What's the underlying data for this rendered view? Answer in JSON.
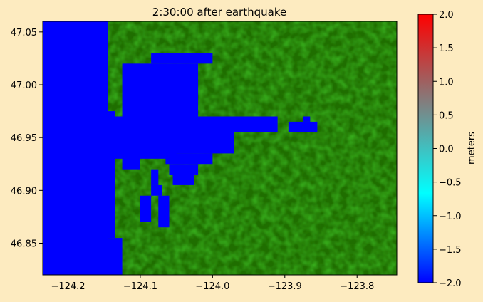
{
  "chart_data": {
    "type": "heatmap",
    "title": "2:30:00 after earthquake",
    "xlabel": "",
    "ylabel": "",
    "xlim": [
      -124.235,
      -123.745
    ],
    "ylim": [
      46.82,
      47.06
    ],
    "xticks": [
      -124.2,
      -124.1,
      -124.0,
      -123.9,
      -123.8
    ],
    "xtick_labels": [
      "−124.2",
      "−124.1",
      "−124.0",
      "−123.9",
      "−123.8"
    ],
    "yticks": [
      46.85,
      46.9,
      46.95,
      47.0,
      47.05
    ],
    "ytick_labels": [
      "46.85",
      "46.90",
      "46.95",
      "47.00",
      "47.05"
    ],
    "colorbar": {
      "label": "meters",
      "range": [
        -2.0,
        2.0
      ],
      "ticks": [
        -2.0,
        -1.5,
        -1.0,
        -0.5,
        0.0,
        0.5,
        1.0,
        1.5,
        2.0
      ],
      "tick_labels": [
        "−2.0",
        "−1.5",
        "−1.0",
        "−0.5",
        "0.0",
        "0.5",
        "1.0",
        "1.5",
        "2.0"
      ],
      "colors": [
        "#0000ff",
        "#00ffff",
        "#808080",
        "#ff0000"
      ]
    },
    "water_value_m": -2.0,
    "land_color": "#1f6e00",
    "water_color": "#0000ff",
    "water_regions": [
      [
        -124.235,
        46.82,
        -124.145,
        47.06
      ],
      [
        -124.145,
        46.82,
        -124.125,
        46.855
      ],
      [
        -124.145,
        46.855,
        -124.135,
        46.975
      ],
      [
        -124.125,
        46.92,
        -124.1,
        46.94
      ],
      [
        -124.135,
        46.93,
        -124.05,
        46.97
      ],
      [
        -124.125,
        46.97,
        -124.02,
        47.02
      ],
      [
        -124.085,
        47.02,
        -124.0,
        47.03
      ],
      [
        -124.06,
        46.955,
        -123.91,
        46.97
      ],
      [
        -124.07,
        46.935,
        -123.97,
        46.955
      ],
      [
        -124.065,
        46.925,
        -124.0,
        46.935
      ],
      [
        -124.06,
        46.915,
        -124.02,
        46.925
      ],
      [
        -124.055,
        46.905,
        -124.025,
        46.915
      ],
      [
        -124.085,
        46.905,
        -124.075,
        46.92
      ],
      [
        -124.085,
        46.895,
        -124.07,
        46.905
      ],
      [
        -124.075,
        46.865,
        -124.06,
        46.895
      ],
      [
        -124.1,
        46.87,
        -124.085,
        46.895
      ],
      [
        -123.895,
        46.955,
        -123.855,
        46.965
      ],
      [
        -123.875,
        46.965,
        -123.865,
        46.97
      ]
    ]
  }
}
